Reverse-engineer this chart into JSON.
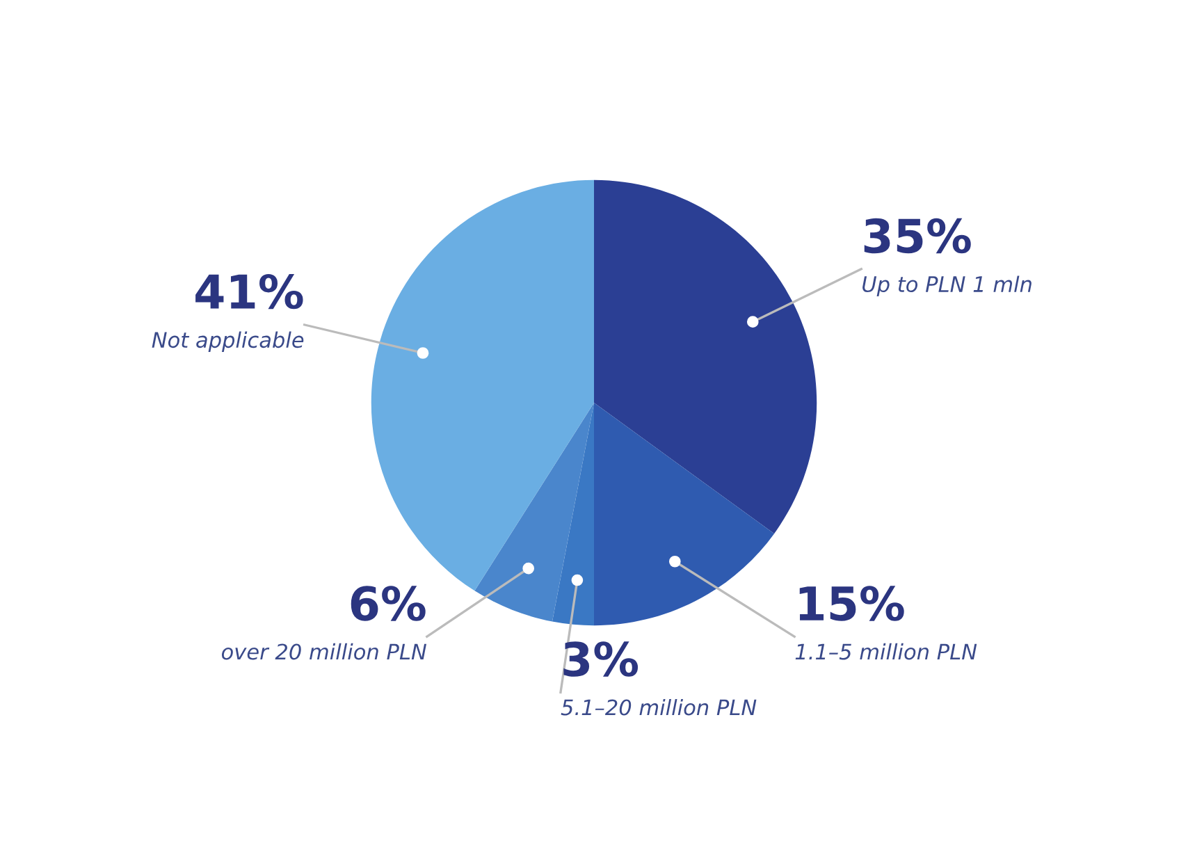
{
  "chart_data": {
    "type": "pie",
    "categories": [
      "Up to PLN 1 mln",
      "1.1–5 million PLN",
      "5.1–20 million PLN",
      "over 20 million PLN",
      "Not applicable"
    ],
    "values": [
      35,
      15,
      3,
      6,
      41
    ],
    "value_labels": [
      "35%",
      "15%",
      "3%",
      "6%",
      "41%"
    ],
    "colors": [
      "#2b3f94",
      "#2f5bb0",
      "#3a78c4",
      "#4a86cc",
      "#6aaee3"
    ]
  }
}
